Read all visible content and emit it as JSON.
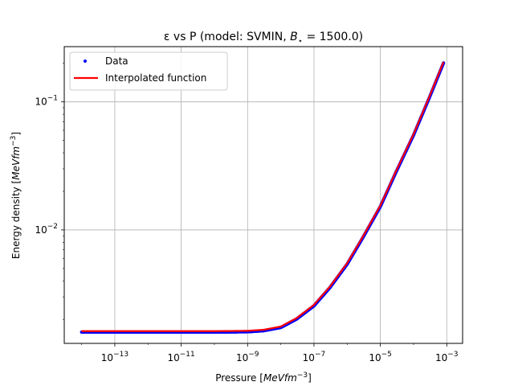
{
  "chart_data": {
    "type": "line",
    "title_prefix": "ε vs P (model: SVMIN, ",
    "title_sym": "B",
    "title_sub": "⋆",
    "title_suffix": " = 1500.0)",
    "xlabel_text": "Pressure [",
    "xlabel_unit": "MeVfm",
    "xlabel_exp": "−3",
    "xlabel_close": "]",
    "ylabel_text": "Energy density [",
    "ylabel_unit": "MeVfm",
    "ylabel_exp": "−3",
    "ylabel_close": "]",
    "x_scale": "log",
    "y_scale": "log",
    "xlim": [
      3e-15,
      0.003
    ],
    "ylim": [
      0.0013,
      0.27
    ],
    "x_ticks": [
      {
        "value": 1e-13,
        "base": "10",
        "exp": "−13"
      },
      {
        "value": 1e-11,
        "base": "10",
        "exp": "−11"
      },
      {
        "value": 1e-09,
        "base": "10",
        "exp": "−9"
      },
      {
        "value": 1e-07,
        "base": "10",
        "exp": "−7"
      },
      {
        "value": 1e-05,
        "base": "10",
        "exp": "−5"
      },
      {
        "value": 0.001,
        "base": "10",
        "exp": "−3"
      }
    ],
    "y_ticks": [
      {
        "value": 0.01,
        "base": "10",
        "exp": "−2"
      },
      {
        "value": 0.1,
        "base": "10",
        "exp": "−1"
      }
    ],
    "grid": true,
    "legend_position": "top-left",
    "series": [
      {
        "name": "Data",
        "style": "points",
        "color": "#0000ff",
        "x": [
          1e-14,
          1e-13,
          1e-12,
          1e-11,
          1e-10,
          1e-09,
          3e-09,
          1e-08,
          3e-08,
          1e-07,
          3e-07,
          1e-06,
          3e-06,
          1e-05,
          3e-05,
          0.0001,
          0.0003,
          0.0008
        ],
        "y": [
          0.00162,
          0.00162,
          0.00162,
          0.00162,
          0.00162,
          0.00163,
          0.00166,
          0.00176,
          0.00205,
          0.0026,
          0.0036,
          0.0055,
          0.0089,
          0.0155,
          0.029,
          0.056,
          0.11,
          0.205
        ]
      },
      {
        "name": "Interpolated function",
        "style": "line",
        "color": "#ff0000",
        "x": [
          1e-14,
          1e-13,
          1e-12,
          1e-11,
          1e-10,
          1e-09,
          3e-09,
          1e-08,
          3e-08,
          1e-07,
          3e-07,
          1e-06,
          3e-06,
          1e-05,
          3e-05,
          0.0001,
          0.0003,
          0.0008
        ],
        "y": [
          0.00162,
          0.00162,
          0.00162,
          0.00162,
          0.00162,
          0.00163,
          0.00166,
          0.00176,
          0.00205,
          0.0026,
          0.0036,
          0.0055,
          0.0089,
          0.0155,
          0.029,
          0.056,
          0.11,
          0.205
        ]
      }
    ]
  }
}
